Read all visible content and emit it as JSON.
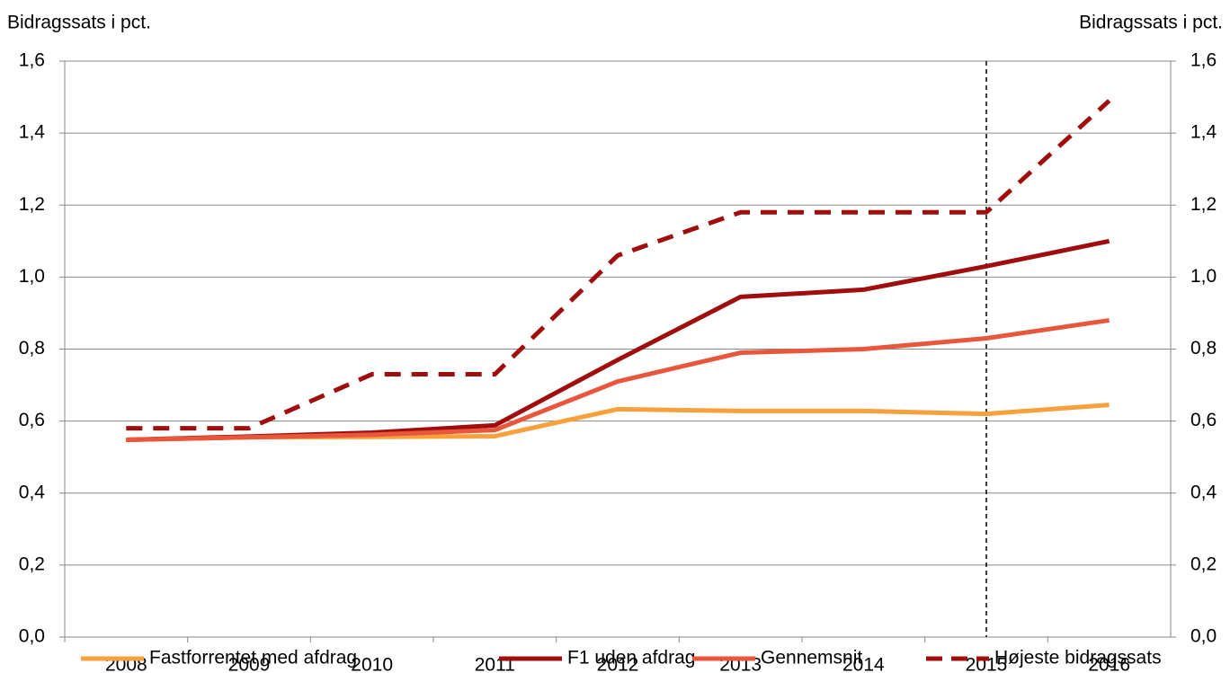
{
  "chart_data": {
    "type": "line",
    "y_label": "Bidragssats i pct.",
    "y2_label": "Bidragssats i pct.",
    "categories": [
      "2008",
      "2009",
      "2010",
      "2011",
      "2012",
      "2013",
      "2014",
      "2015",
      "2016"
    ],
    "series": [
      {
        "name": "Fastforrentet med afdrag",
        "color": "#f7a03c",
        "dash": false,
        "values": [
          0.548,
          0.555,
          0.556,
          0.558,
          0.633,
          0.628,
          0.628,
          0.62,
          0.645
        ]
      },
      {
        "name": "F1 uden afdrag",
        "color": "#a00d0d",
        "dash": false,
        "values": [
          0.548,
          0.557,
          0.568,
          0.588,
          0.77,
          0.945,
          0.965,
          1.03,
          1.1
        ]
      },
      {
        "name": "Gennemsnit",
        "color": "#e8573b",
        "dash": false,
        "values": [
          0.548,
          0.555,
          0.562,
          0.575,
          0.71,
          0.79,
          0.8,
          0.83,
          0.88
        ]
      },
      {
        "name": "Højeste bidragssats",
        "color": "#a00d0d",
        "dash": true,
        "values": [
          0.58,
          0.58,
          0.73,
          0.73,
          1.06,
          1.18,
          1.18,
          1.18,
          1.49
        ]
      }
    ],
    "ylim": [
      0,
      1.6
    ],
    "yticks": [
      {
        "value": 0,
        "label": "0,0"
      },
      {
        "value": 0.2,
        "label": "0,2"
      },
      {
        "value": 0.4,
        "label": "0,4"
      },
      {
        "value": 0.6,
        "label": "0,6"
      },
      {
        "value": 0.8,
        "label": "0,8"
      },
      {
        "value": 1.0,
        "label": "1,0"
      },
      {
        "value": 1.2,
        "label": "1,2"
      },
      {
        "value": 1.4,
        "label": "1,4"
      },
      {
        "value": 1.6,
        "label": "1,6"
      }
    ],
    "y2lim": [
      0,
      1.6
    ],
    "y2ticks": [
      {
        "value": 0,
        "label": "0,0"
      },
      {
        "value": 0.2,
        "label": "0,2"
      },
      {
        "value": 0.4,
        "label": "0,4"
      },
      {
        "value": 0.6,
        "label": "0,6"
      },
      {
        "value": 0.8,
        "label": "0,8"
      },
      {
        "value": 1.0,
        "label": "1,0"
      },
      {
        "value": 1.2,
        "label": "1,2"
      },
      {
        "value": 1.4,
        "label": "1,4"
      },
      {
        "value": 1.6,
        "label": "1,6"
      }
    ],
    "vline": "2015",
    "grid": true,
    "legend": "bottom"
  }
}
